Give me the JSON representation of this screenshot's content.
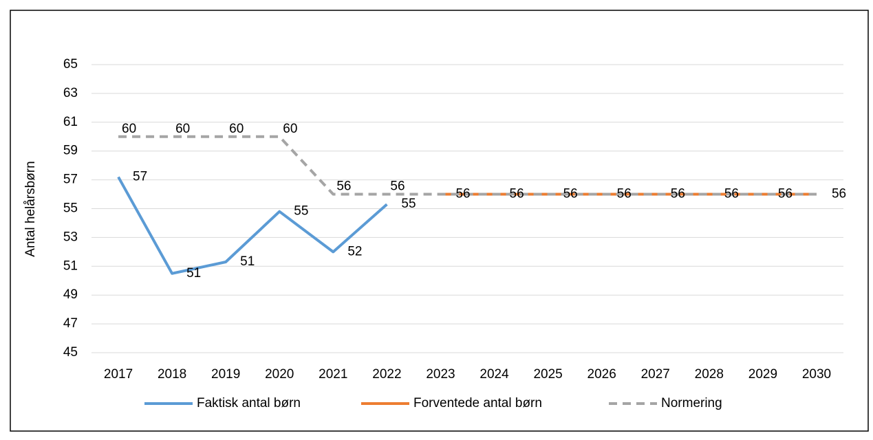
{
  "chart_data": {
    "type": "line",
    "y_label": "Antal helårsbørn",
    "categories": [
      "2017",
      "2018",
      "2019",
      "2020",
      "2021",
      "2022",
      "2023",
      "2024",
      "2025",
      "2026",
      "2027",
      "2028",
      "2029",
      "2030"
    ],
    "series": [
      {
        "name": "Faktisk antal børn",
        "color": "#5b9bd5",
        "style": "solid",
        "values": [
          57.2,
          50.5,
          51.3,
          54.8,
          52.0,
          55.3,
          null,
          null,
          null,
          null,
          null,
          null,
          null,
          null
        ],
        "value_labels": [
          "57",
          "51",
          "51",
          "55",
          "52",
          "55",
          null,
          null,
          null,
          null,
          null,
          null,
          null,
          null
        ]
      },
      {
        "name": "Forventede antal børn",
        "color": "#ed7d31",
        "style": "solid",
        "values": [
          null,
          null,
          null,
          null,
          null,
          null,
          56,
          56,
          56,
          56,
          56,
          56,
          56,
          56
        ],
        "value_labels": [
          null,
          null,
          null,
          null,
          null,
          null,
          "56",
          "56",
          "56",
          "56",
          "56",
          "56",
          "56",
          "56"
        ]
      },
      {
        "name": "Normering",
        "color": "#a5a5a5",
        "style": "dashed",
        "values": [
          60,
          60,
          60,
          60,
          56,
          56,
          56,
          56,
          56,
          56,
          56,
          56,
          56,
          56
        ],
        "value_labels": [
          "60",
          "60",
          "60",
          "60",
          "56",
          "56",
          null,
          null,
          null,
          null,
          null,
          null,
          null,
          null
        ]
      }
    ],
    "ylim": [
      45,
      65
    ],
    "yticks": [
      45,
      47,
      49,
      51,
      53,
      55,
      57,
      59,
      61,
      63,
      65
    ],
    "grid": true,
    "legend": "bottom"
  }
}
